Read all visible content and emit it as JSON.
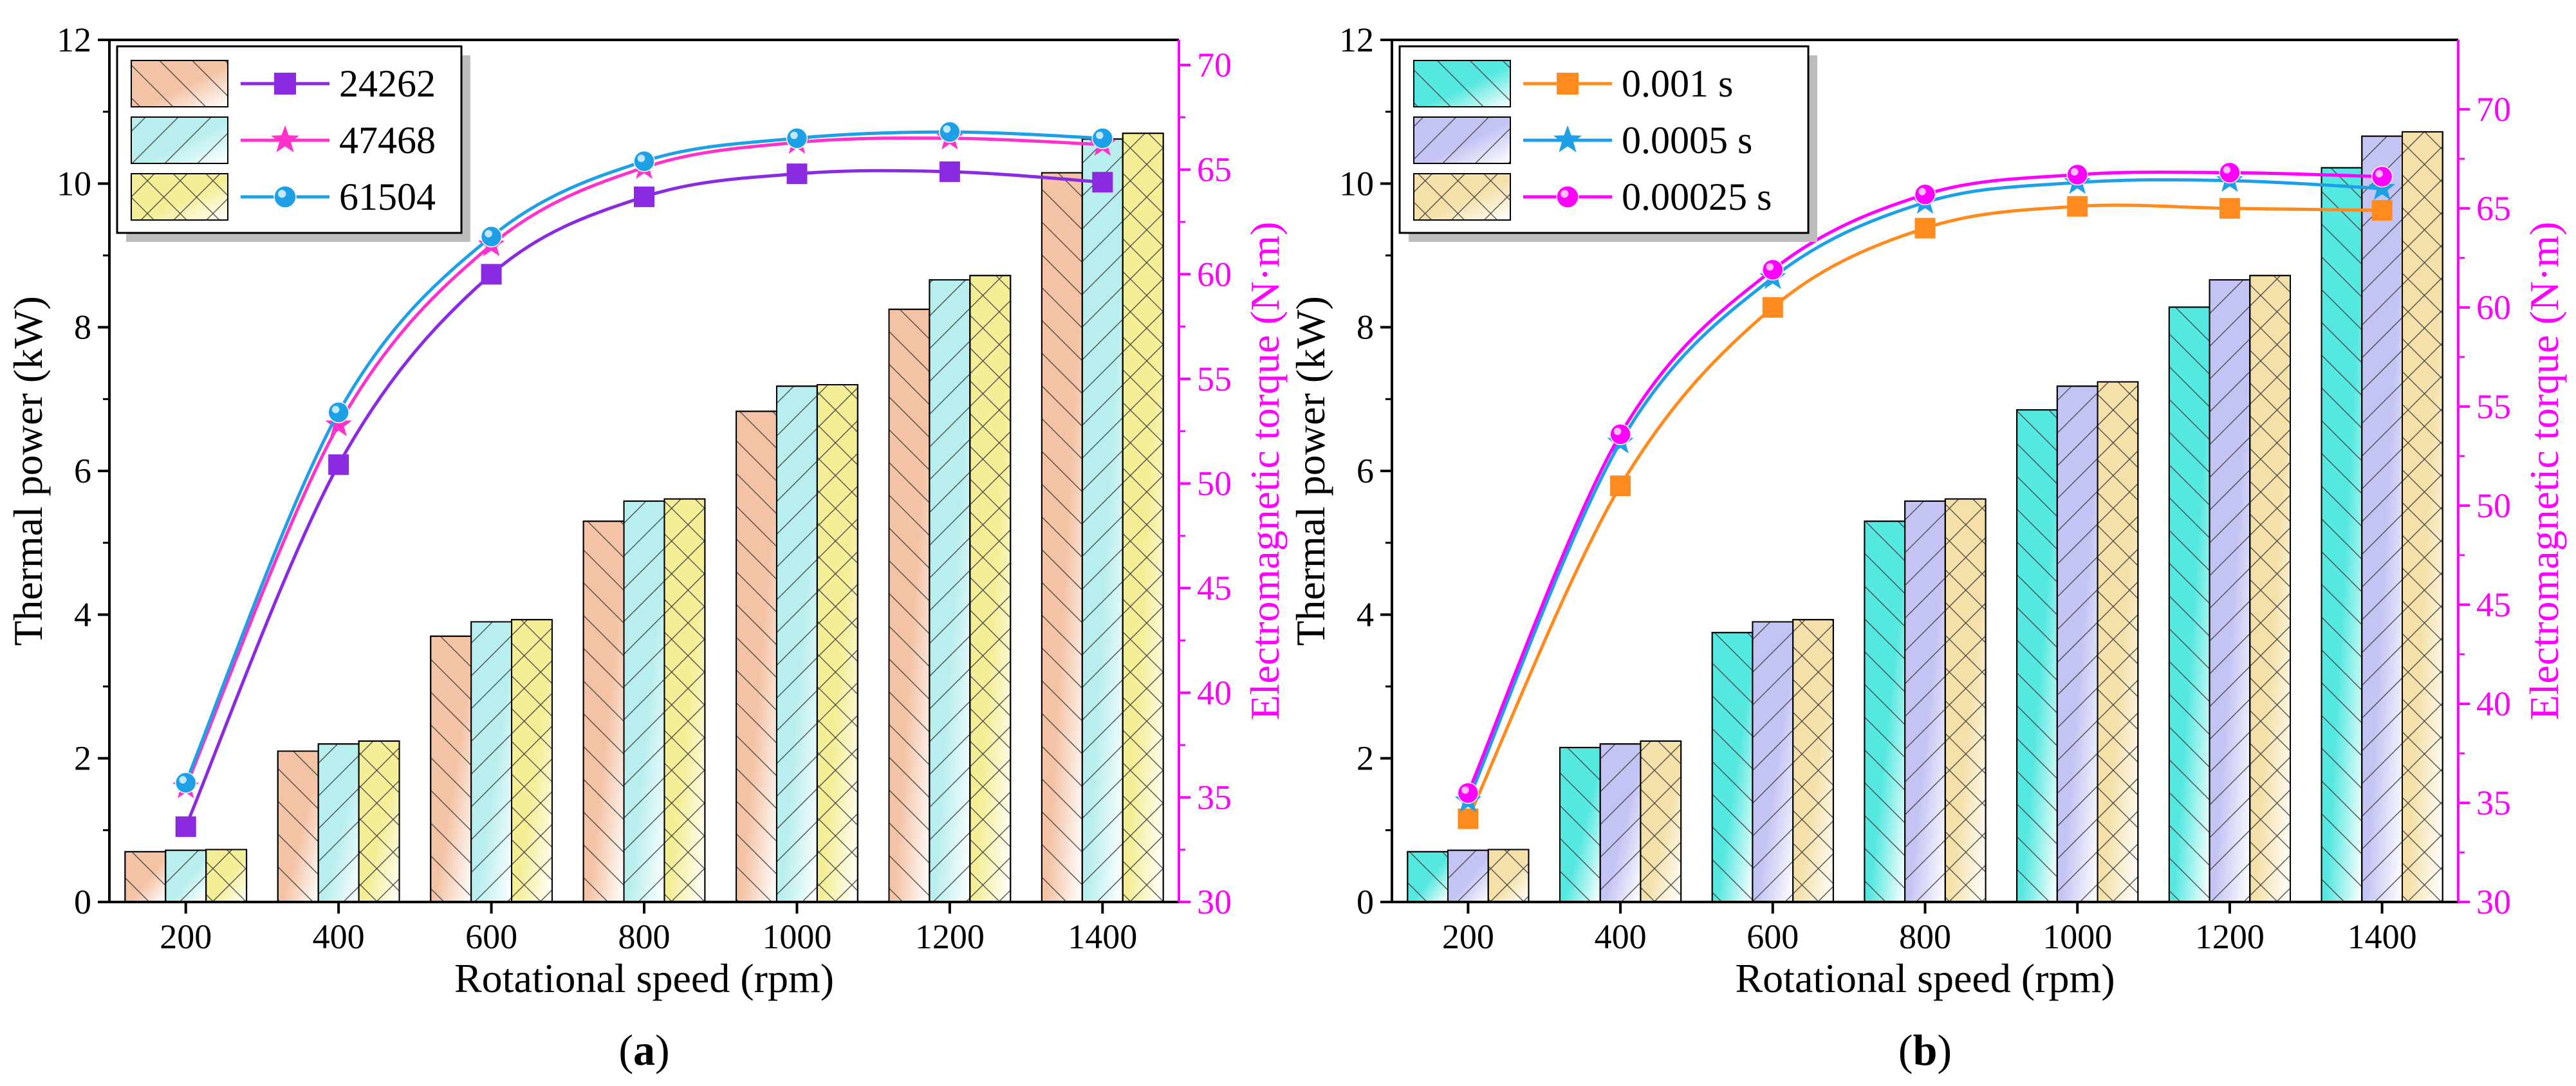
{
  "chart_data": [
    {
      "type": "bar",
      "panel": "a",
      "caption_open": "(",
      "caption_letter": "a",
      "caption_close": ")",
      "xlabel": "Rotational speed (rpm)",
      "ylabel": "Thermal power (kW)",
      "y2label": "Electromagnetic torque (N·m)",
      "categories": [
        "200",
        "400",
        "600",
        "800",
        "1000",
        "1200",
        "1400"
      ],
      "ylim": [
        0,
        12
      ],
      "yticks": [
        "0",
        "2",
        "4",
        "6",
        "8",
        "10",
        "12"
      ],
      "y2lim": [
        30,
        71.2
      ],
      "y2ticks": [
        "30",
        "35",
        "40",
        "45",
        "50",
        "55",
        "60",
        "65",
        "70"
      ],
      "grid": false,
      "legend_position": "top-left",
      "series": [
        {
          "name": "24262",
          "bar_values": [
            0.7,
            2.1,
            3.7,
            5.3,
            6.83,
            8.25,
            10.15
          ],
          "line_values": [
            33.6,
            50.9,
            60.0,
            63.7,
            64.8,
            64.9,
            64.4
          ],
          "bar_color": "#f4c2a4",
          "line_color": "#8a2be2",
          "marker": "square",
          "hatch": "forward"
        },
        {
          "name": "47468",
          "bar_values": [
            0.72,
            2.2,
            3.9,
            5.58,
            7.18,
            8.66,
            10.62
          ],
          "line_values": [
            35.5,
            52.8,
            61.4,
            65.1,
            66.3,
            66.5,
            66.2
          ],
          "bar_color": "#b8eeee",
          "line_color": "#ff33cc",
          "marker": "star",
          "hatch": "back"
        },
        {
          "name": "61504",
          "bar_values": [
            0.73,
            2.24,
            3.93,
            5.61,
            7.2,
            8.72,
            10.7
          ],
          "line_values": [
            35.7,
            53.4,
            61.8,
            65.4,
            66.5,
            66.8,
            66.5
          ],
          "bar_color": "#f4ee96",
          "line_color": "#1ea0e6",
          "marker": "circle",
          "hatch": "cross"
        }
      ]
    },
    {
      "type": "bar",
      "panel": "b",
      "caption_open": "(",
      "caption_letter": "b",
      "caption_close": ")",
      "xlabel": "Rotational speed (rpm)",
      "ylabel": "Thermal power (kW)",
      "y2label": "Electromagnetic torque (N·m)",
      "categories": [
        "200",
        "400",
        "600",
        "800",
        "1000",
        "1200",
        "1400"
      ],
      "ylim": [
        0,
        12
      ],
      "yticks": [
        "0",
        "2",
        "4",
        "6",
        "8",
        "10",
        "12"
      ],
      "y2lim": [
        30,
        73.5
      ],
      "y2ticks": [
        "30",
        "35",
        "40",
        "45",
        "50",
        "55",
        "60",
        "65",
        "70"
      ],
      "grid": false,
      "legend_position": "top-left",
      "series": [
        {
          "name": "0.001 s",
          "bar_values": [
            0.7,
            2.15,
            3.75,
            5.3,
            6.85,
            8.28,
            10.22
          ],
          "line_values": [
            34.2,
            51.0,
            60.0,
            64.0,
            65.1,
            65.0,
            64.9
          ],
          "bar_color": "#55e8e0",
          "line_color": "#ff8a1e",
          "marker": "square",
          "hatch": "forward"
        },
        {
          "name": "0.0005 s",
          "bar_values": [
            0.72,
            2.2,
            3.9,
            5.58,
            7.18,
            8.66,
            10.66
          ],
          "line_values": [
            35.1,
            53.2,
            61.5,
            65.3,
            66.3,
            66.4,
            66.0
          ],
          "bar_color": "#c4c4f4",
          "line_color": "#1ea0e6",
          "marker": "star",
          "hatch": "back"
        },
        {
          "name": "0.00025 s",
          "bar_values": [
            0.73,
            2.24,
            3.93,
            5.61,
            7.24,
            8.72,
            10.72
          ],
          "line_values": [
            35.5,
            53.6,
            61.9,
            65.7,
            66.7,
            66.8,
            66.6
          ],
          "bar_color": "#f4e0a8",
          "line_color": "#ff00ff",
          "marker": "circle",
          "hatch": "cross"
        }
      ]
    }
  ]
}
